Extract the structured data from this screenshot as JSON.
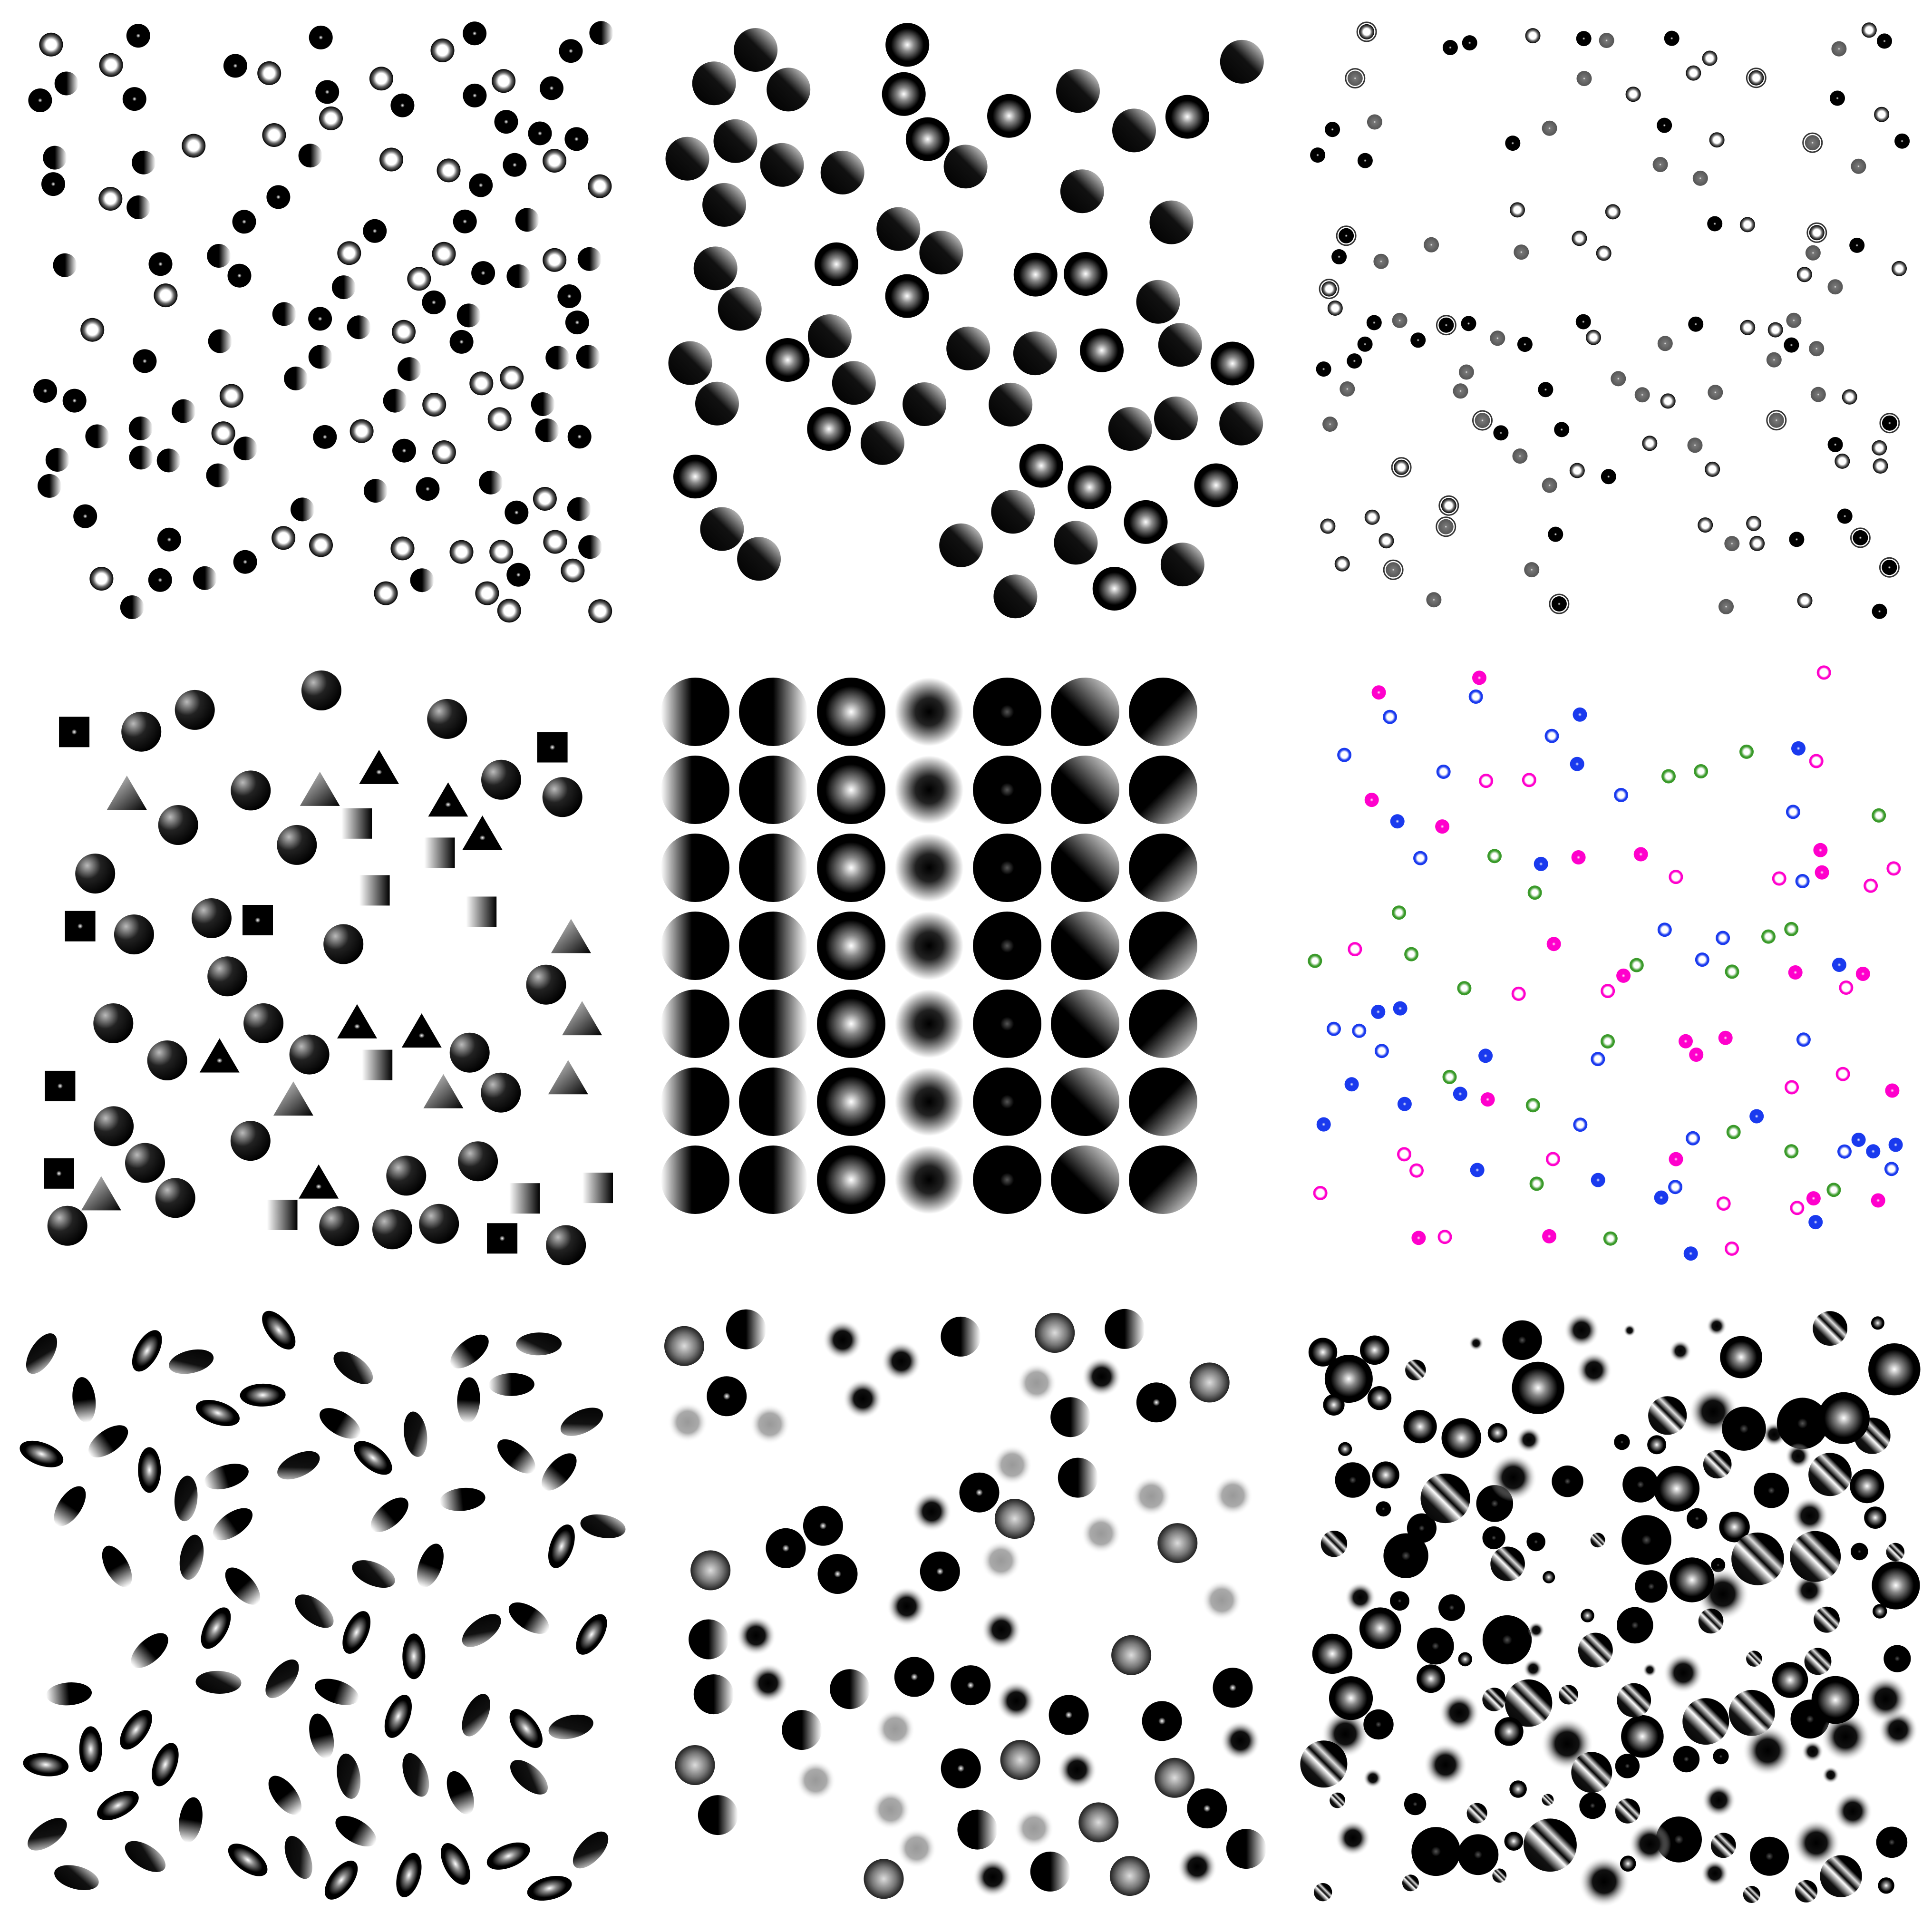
{
  "panels": [
    {
      "id": "small-dots-mixed-gradients",
      "fills": [
        "ring",
        "dark",
        "half"
      ]
    },
    {
      "id": "large-spheres-shaded",
      "fills": [
        "half",
        "radial"
      ]
    },
    {
      "id": "tiny-dots-rings-gray",
      "fills": [
        "dark",
        "ring",
        "gray"
      ]
    },
    {
      "id": "mixed-shapes-circles-squares-triangles",
      "fills": [
        "sphere",
        "sqdot",
        "tri"
      ]
    },
    {
      "id": "gradient-grid-7x7",
      "rows": 7,
      "columns": [
        "left-white",
        "half-right",
        "radial-highlight",
        "soft-dark",
        "dark-center",
        "diag-light",
        "bottom-right-light"
      ]
    },
    {
      "id": "colored-rings",
      "colors": {
        "magenta": "#ff00cc",
        "green": "#3a9a2a",
        "blue": "#1a3aee"
      }
    },
    {
      "id": "ellipses-rotated",
      "fills": [
        "half",
        "radial"
      ]
    },
    {
      "id": "blurred-and-sharp-disks",
      "fills": [
        "dark",
        "soft",
        "gray",
        "half"
      ]
    },
    {
      "id": "striped-and-blurred-spheres",
      "fills": [
        "dark",
        "stripe",
        "soft"
      ]
    }
  ]
}
